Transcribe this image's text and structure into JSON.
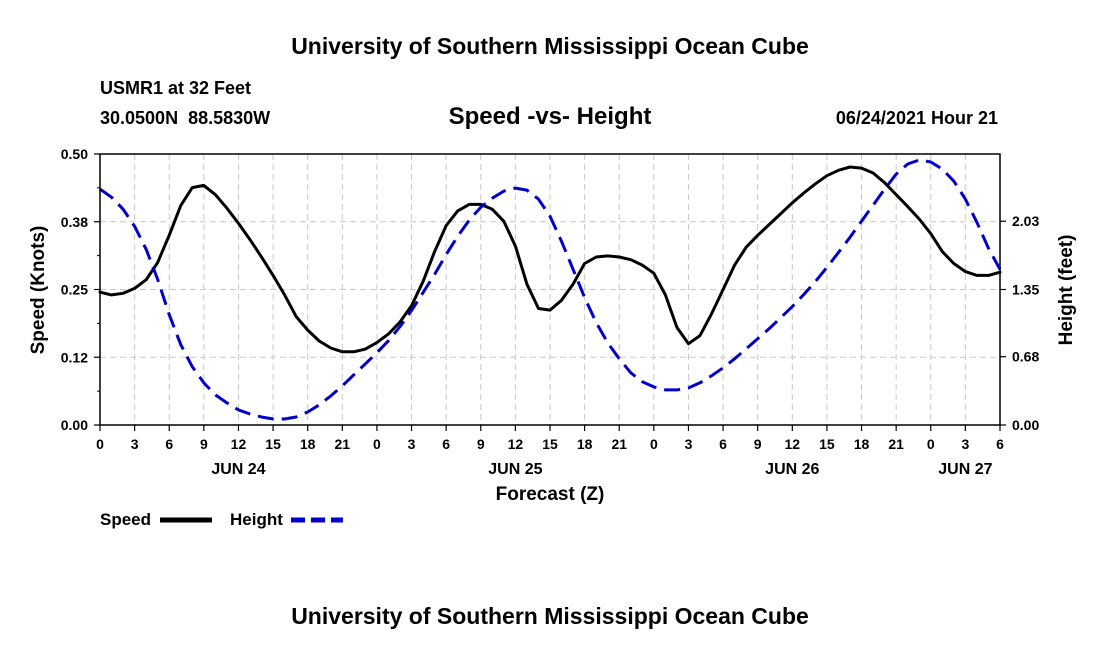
{
  "header": {
    "title": "University of Southern Mississippi Ocean Cube",
    "station": "USMR1 at 32 Feet",
    "coords": "30.0500N  88.5830W",
    "subtitle": "Speed -vs- Height",
    "datetime": "06/24/2021 Hour 21"
  },
  "footer": {
    "title": "University of Southern Mississippi Ocean Cube"
  },
  "legend": [
    {
      "label": "Speed",
      "color": "#000000",
      "dashed": false
    },
    {
      "label": "Height",
      "color": "#0000cc",
      "dashed": true
    }
  ],
  "chart_data": {
    "type": "line",
    "title": "Speed -vs- Height",
    "xlabel": "Forecast (Z)",
    "ylabel": "Speed (Knots)",
    "y2label": "Height (feet)",
    "xlim": [
      0,
      78
    ],
    "ylim": [
      0,
      0.5
    ],
    "y2lim": [
      0,
      2.7
    ],
    "grid": true,
    "legend_position": "bottom-left",
    "x_ticks": [
      {
        "x": 0,
        "label": "0"
      },
      {
        "x": 3,
        "label": "3"
      },
      {
        "x": 6,
        "label": "6"
      },
      {
        "x": 9,
        "label": "9"
      },
      {
        "x": 12,
        "label": "12"
      },
      {
        "x": 15,
        "label": "15"
      },
      {
        "x": 18,
        "label": "18"
      },
      {
        "x": 21,
        "label": "21"
      },
      {
        "x": 24,
        "label": "0"
      },
      {
        "x": 27,
        "label": "3"
      },
      {
        "x": 30,
        "label": "6"
      },
      {
        "x": 33,
        "label": "9"
      },
      {
        "x": 36,
        "label": "12"
      },
      {
        "x": 39,
        "label": "15"
      },
      {
        "x": 42,
        "label": "18"
      },
      {
        "x": 45,
        "label": "21"
      },
      {
        "x": 48,
        "label": "0"
      },
      {
        "x": 51,
        "label": "3"
      },
      {
        "x": 54,
        "label": "6"
      },
      {
        "x": 57,
        "label": "9"
      },
      {
        "x": 60,
        "label": "12"
      },
      {
        "x": 63,
        "label": "15"
      },
      {
        "x": 66,
        "label": "18"
      },
      {
        "x": 69,
        "label": "21"
      },
      {
        "x": 72,
        "label": "0"
      },
      {
        "x": 75,
        "label": "3"
      },
      {
        "x": 78,
        "label": "6"
      }
    ],
    "date_labels": [
      {
        "x": 12,
        "label": "JUN 24"
      },
      {
        "x": 36,
        "label": "JUN 25"
      },
      {
        "x": 60,
        "label": "JUN 26"
      },
      {
        "x": 75,
        "label": "JUN 27"
      }
    ],
    "y_ticks": [
      {
        "value": 0.0,
        "label": "0.00"
      },
      {
        "value": 0.125,
        "label": "0.12"
      },
      {
        "value": 0.25,
        "label": "0.25"
      },
      {
        "value": 0.375,
        "label": "0.38"
      },
      {
        "value": 0.5,
        "label": "0.50"
      }
    ],
    "y2_ticks": [
      {
        "value": 0.0,
        "label": "0.00"
      },
      {
        "value": 0.68,
        "label": "0.68"
      },
      {
        "value": 1.35,
        "label": "1.35"
      },
      {
        "value": 2.03,
        "label": "2.03"
      }
    ],
    "series": [
      {
        "name": "Speed",
        "axis": "left",
        "color": "#000000",
        "dashed": false,
        "points": [
          [
            0,
            0.245
          ],
          [
            1,
            0.24
          ],
          [
            2,
            0.243
          ],
          [
            3,
            0.252
          ],
          [
            4,
            0.268
          ],
          [
            5,
            0.3
          ],
          [
            6,
            0.35
          ],
          [
            7,
            0.405
          ],
          [
            8,
            0.438
          ],
          [
            9,
            0.442
          ],
          [
            10,
            0.425
          ],
          [
            11,
            0.4
          ],
          [
            12,
            0.372
          ],
          [
            13,
            0.342
          ],
          [
            14,
            0.31
          ],
          [
            15,
            0.276
          ],
          [
            16,
            0.24
          ],
          [
            17,
            0.2
          ],
          [
            18,
            0.175
          ],
          [
            19,
            0.155
          ],
          [
            20,
            0.142
          ],
          [
            21,
            0.135
          ],
          [
            22,
            0.135
          ],
          [
            23,
            0.14
          ],
          [
            24,
            0.152
          ],
          [
            25,
            0.168
          ],
          [
            26,
            0.19
          ],
          [
            27,
            0.22
          ],
          [
            28,
            0.265
          ],
          [
            29,
            0.32
          ],
          [
            30,
            0.368
          ],
          [
            31,
            0.395
          ],
          [
            32,
            0.407
          ],
          [
            33,
            0.407
          ],
          [
            34,
            0.398
          ],
          [
            35,
            0.376
          ],
          [
            36,
            0.33
          ],
          [
            37,
            0.26
          ],
          [
            38,
            0.215
          ],
          [
            39,
            0.212
          ],
          [
            40,
            0.23
          ],
          [
            41,
            0.26
          ],
          [
            42,
            0.298
          ],
          [
            43,
            0.31
          ],
          [
            44,
            0.312
          ],
          [
            45,
            0.31
          ],
          [
            46,
            0.305
          ],
          [
            47,
            0.295
          ],
          [
            48,
            0.28
          ],
          [
            49,
            0.24
          ],
          [
            50,
            0.18
          ],
          [
            51,
            0.15
          ],
          [
            52,
            0.165
          ],
          [
            53,
            0.205
          ],
          [
            54,
            0.25
          ],
          [
            55,
            0.295
          ],
          [
            56,
            0.328
          ],
          [
            57,
            0.35
          ],
          [
            58,
            0.37
          ],
          [
            59,
            0.39
          ],
          [
            60,
            0.41
          ],
          [
            61,
            0.428
          ],
          [
            62,
            0.445
          ],
          [
            63,
            0.46
          ],
          [
            64,
            0.47
          ],
          [
            65,
            0.476
          ],
          [
            66,
            0.474
          ],
          [
            67,
            0.465
          ],
          [
            68,
            0.447
          ],
          [
            69,
            0.425
          ],
          [
            70,
            0.403
          ],
          [
            71,
            0.38
          ],
          [
            72,
            0.353
          ],
          [
            73,
            0.32
          ],
          [
            74,
            0.298
          ],
          [
            75,
            0.283
          ],
          [
            76,
            0.276
          ],
          [
            77,
            0.276
          ],
          [
            78,
            0.282
          ]
        ]
      },
      {
        "name": "Height",
        "axis": "right",
        "color": "#0000cc",
        "dashed": true,
        "points": [
          [
            0,
            2.35
          ],
          [
            1,
            2.27
          ],
          [
            2,
            2.15
          ],
          [
            3,
            1.98
          ],
          [
            4,
            1.75
          ],
          [
            5,
            1.45
          ],
          [
            6,
            1.1
          ],
          [
            7,
            0.8
          ],
          [
            8,
            0.58
          ],
          [
            9,
            0.42
          ],
          [
            10,
            0.3
          ],
          [
            11,
            0.22
          ],
          [
            12,
            0.15
          ],
          [
            13,
            0.11
          ],
          [
            14,
            0.08
          ],
          [
            15,
            0.06
          ],
          [
            16,
            0.06
          ],
          [
            17,
            0.08
          ],
          [
            18,
            0.13
          ],
          [
            19,
            0.2
          ],
          [
            20,
            0.29
          ],
          [
            21,
            0.39
          ],
          [
            22,
            0.5
          ],
          [
            23,
            0.61
          ],
          [
            24,
            0.72
          ],
          [
            25,
            0.84
          ],
          [
            26,
            0.98
          ],
          [
            27,
            1.14
          ],
          [
            28,
            1.32
          ],
          [
            29,
            1.5
          ],
          [
            30,
            1.7
          ],
          [
            31,
            1.88
          ],
          [
            32,
            2.04
          ],
          [
            33,
            2.17
          ],
          [
            34,
            2.26
          ],
          [
            35,
            2.33
          ],
          [
            36,
            2.36
          ],
          [
            37,
            2.34
          ],
          [
            38,
            2.25
          ],
          [
            39,
            2.08
          ],
          [
            40,
            1.83
          ],
          [
            41,
            1.55
          ],
          [
            42,
            1.27
          ],
          [
            43,
            1.02
          ],
          [
            44,
            0.82
          ],
          [
            45,
            0.66
          ],
          [
            46,
            0.52
          ],
          [
            47,
            0.43
          ],
          [
            48,
            0.38
          ],
          [
            49,
            0.35
          ],
          [
            50,
            0.35
          ],
          [
            51,
            0.37
          ],
          [
            52,
            0.42
          ],
          [
            53,
            0.49
          ],
          [
            54,
            0.57
          ],
          [
            55,
            0.66
          ],
          [
            56,
            0.76
          ],
          [
            57,
            0.86
          ],
          [
            58,
            0.96
          ],
          [
            59,
            1.07
          ],
          [
            60,
            1.18
          ],
          [
            61,
            1.3
          ],
          [
            62,
            1.43
          ],
          [
            63,
            1.57
          ],
          [
            64,
            1.72
          ],
          [
            65,
            1.87
          ],
          [
            66,
            2.03
          ],
          [
            67,
            2.19
          ],
          [
            68,
            2.35
          ],
          [
            69,
            2.5
          ],
          [
            70,
            2.6
          ],
          [
            71,
            2.64
          ],
          [
            72,
            2.62
          ],
          [
            73,
            2.55
          ],
          [
            74,
            2.43
          ],
          [
            75,
            2.25
          ],
          [
            76,
            2.02
          ],
          [
            77,
            1.76
          ],
          [
            78,
            1.55
          ]
        ]
      }
    ]
  }
}
